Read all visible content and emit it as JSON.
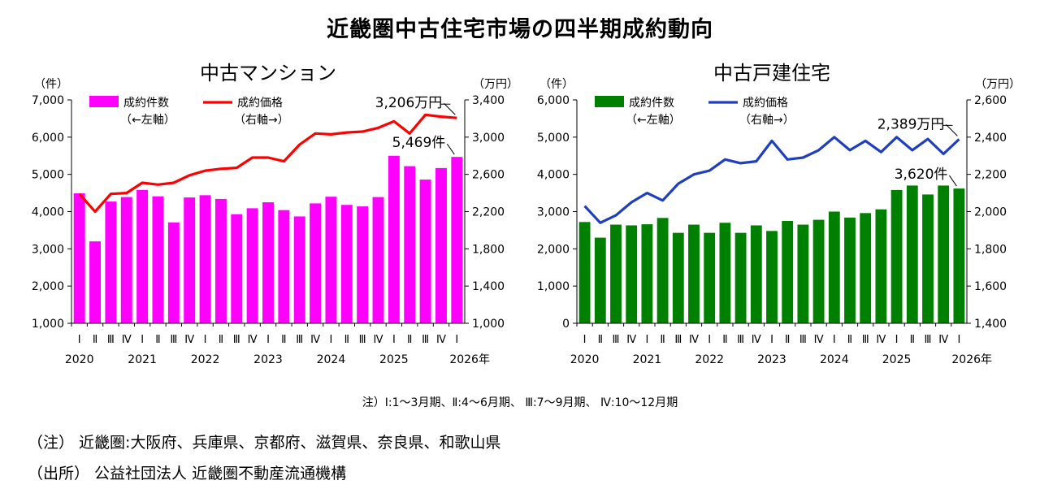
{
  "title": "近畿圏中古住宅市場の四半期成約動向",
  "period_note": "注）Ⅰ:1～3月期、Ⅱ:4～6月期、 Ⅲ:7～9月期、 Ⅳ:10～12月期",
  "footer": {
    "note": "（注） 近畿圏:大阪府、兵庫県、京都府、滋賀県、奈良県、和歌山県",
    "source": "（出所） 公益社団法人 近畿圏不動産流通機構"
  },
  "colors": {
    "mansion_bar": "#ff00ff",
    "mansion_line": "#ff0000",
    "house_bar": "#008000",
    "house_line": "#1f3fbf"
  },
  "chart_data": [
    {
      "type": "bar",
      "title": "中古マンション",
      "quarters": [
        "Ⅰ",
        "Ⅱ",
        "Ⅲ",
        "Ⅳ",
        "Ⅰ",
        "Ⅱ",
        "Ⅲ",
        "Ⅳ",
        "Ⅰ",
        "Ⅱ",
        "Ⅲ",
        "Ⅳ",
        "Ⅰ",
        "Ⅱ",
        "Ⅲ",
        "Ⅳ",
        "Ⅰ",
        "Ⅱ",
        "Ⅲ",
        "Ⅳ",
        "Ⅰ",
        "Ⅱ",
        "Ⅲ",
        "Ⅳ",
        "Ⅰ"
      ],
      "years": [
        {
          "label": "2020",
          "index": 0
        },
        {
          "label": "2021",
          "index": 4
        },
        {
          "label": "2022",
          "index": 8
        },
        {
          "label": "2023",
          "index": 12
        },
        {
          "label": "2024",
          "index": 16
        },
        {
          "label": "2025",
          "index": 20
        },
        {
          "label": "2026年",
          "index": 24
        }
      ],
      "y_left": {
        "unit": "（件）",
        "min": 1000,
        "max": 7000,
        "ticks": [
          1000,
          2000,
          3000,
          4000,
          5000,
          6000,
          7000
        ],
        "tick_labels": [
          "1,000",
          "2,000",
          "3,000",
          "4,000",
          "5,000",
          "6,000",
          "7,000"
        ]
      },
      "y_right": {
        "unit": "（万円）",
        "min": 1000,
        "max": 3400,
        "ticks": [
          1000,
          1400,
          1800,
          2200,
          2600,
          3000,
          3400
        ],
        "tick_labels": [
          "1,000",
          "1,400",
          "1,800",
          "2,200",
          "2,600",
          "3,000",
          "3,400"
        ]
      },
      "series": [
        {
          "name": "成約件数",
          "sub": "（←左軸）",
          "kind": "bar",
          "axis": "left",
          "values": [
            4490,
            3200,
            4270,
            4390,
            4580,
            4410,
            3710,
            4380,
            4440,
            4340,
            3930,
            4090,
            4250,
            4040,
            3870,
            4220,
            4400,
            4180,
            4140,
            4390,
            5500,
            5220,
            4860,
            5170,
            5469
          ]
        },
        {
          "name": "成約価格",
          "sub": "（右軸→）",
          "kind": "line",
          "axis": "right",
          "values": [
            2390,
            2200,
            2390,
            2400,
            2510,
            2490,
            2510,
            2590,
            2640,
            2660,
            2670,
            2780,
            2780,
            2740,
            2920,
            3040,
            3030,
            3050,
            3060,
            3100,
            3170,
            3040,
            3240,
            3220,
            3206
          ]
        }
      ],
      "annotations": {
        "count_last": "5,469件",
        "price_last": "3,206万円"
      }
    },
    {
      "type": "bar",
      "title": "中古戸建住宅",
      "quarters": [
        "Ⅰ",
        "Ⅱ",
        "Ⅲ",
        "Ⅳ",
        "Ⅰ",
        "Ⅱ",
        "Ⅲ",
        "Ⅳ",
        "Ⅰ",
        "Ⅱ",
        "Ⅲ",
        "Ⅳ",
        "Ⅰ",
        "Ⅱ",
        "Ⅲ",
        "Ⅳ",
        "Ⅰ",
        "Ⅱ",
        "Ⅲ",
        "Ⅳ",
        "Ⅰ",
        "Ⅱ",
        "Ⅲ",
        "Ⅳ",
        "Ⅰ"
      ],
      "years": [
        {
          "label": "2020",
          "index": 0
        },
        {
          "label": "2021",
          "index": 4
        },
        {
          "label": "2022",
          "index": 8
        },
        {
          "label": "2023",
          "index": 12
        },
        {
          "label": "2024",
          "index": 16
        },
        {
          "label": "2025",
          "index": 20
        },
        {
          "label": "2026年",
          "index": 24
        }
      ],
      "y_left": {
        "unit": "（件）",
        "min": 0,
        "max": 6000,
        "ticks": [
          0,
          1000,
          2000,
          3000,
          4000,
          5000,
          6000
        ],
        "tick_labels": [
          "0",
          "1,000",
          "2,000",
          "3,000",
          "4,000",
          "5,000",
          "6,000"
        ]
      },
      "y_right": {
        "unit": "（万円）",
        "min": 1400,
        "max": 2600,
        "ticks": [
          1400,
          1600,
          1800,
          2000,
          2200,
          2400,
          2600
        ],
        "tick_labels": [
          "1,400",
          "1,600",
          "1,800",
          "2,000",
          "2,200",
          "2,400",
          "2,600"
        ]
      },
      "series": [
        {
          "name": "成約件数",
          "sub": "（←左軸）",
          "kind": "bar",
          "axis": "left",
          "values": [
            2720,
            2300,
            2650,
            2630,
            2660,
            2830,
            2430,
            2650,
            2430,
            2700,
            2430,
            2630,
            2480,
            2750,
            2650,
            2780,
            3000,
            2840,
            2960,
            3060,
            3580,
            3700,
            3460,
            3700,
            3620
          ]
        },
        {
          "name": "成約価格",
          "sub": "（右軸→）",
          "kind": "line",
          "axis": "right",
          "values": [
            2030,
            1940,
            1980,
            2050,
            2100,
            2060,
            2150,
            2200,
            2220,
            2280,
            2260,
            2270,
            2380,
            2280,
            2290,
            2330,
            2400,
            2330,
            2380,
            2320,
            2400,
            2330,
            2390,
            2310,
            2389
          ]
        }
      ],
      "annotations": {
        "count_last": "3,620件",
        "price_last": "2,389万円"
      }
    }
  ]
}
